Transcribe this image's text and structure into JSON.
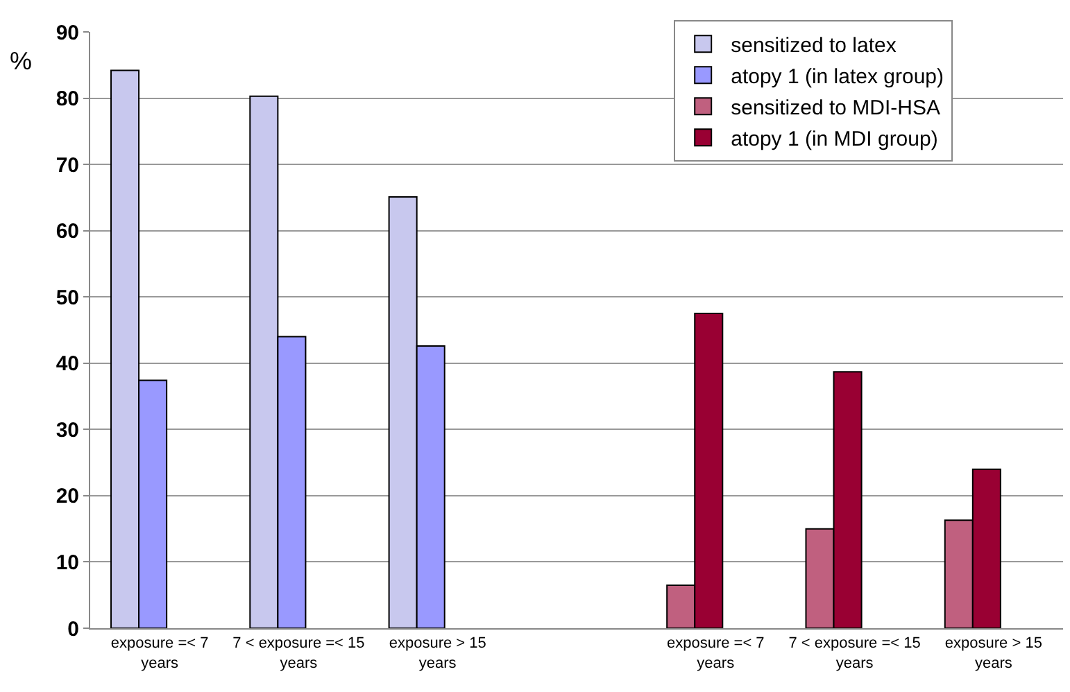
{
  "chart_data": {
    "type": "bar",
    "ylabel": "%",
    "categories": [
      "exposure =< 7 years",
      "7 < exposure =< 15 years",
      "exposure > 15 years",
      null,
      "exposure =< 7 years",
      "7 < exposure =< 15 years",
      "exposure > 15 years"
    ],
    "series": [
      {
        "name": "sensitized to latex",
        "color": "#c8c8ee",
        "values": [
          84.2,
          80.3,
          65.1,
          null,
          null,
          null,
          null
        ]
      },
      {
        "name": "atopy 1 (in latex group)",
        "color": "#9999ff",
        "values": [
          37.4,
          44,
          42.6,
          null,
          null,
          null,
          null
        ]
      },
      {
        "name": "sensitized to MDI-HSA",
        "color": "#c0607f",
        "values": [
          null,
          null,
          null,
          null,
          6.5,
          15,
          16.3
        ]
      },
      {
        "name": "atopy 1 (in MDI group)",
        "color": "#990033",
        "values": [
          null,
          null,
          null,
          null,
          47.5,
          38.7,
          24
        ]
      }
    ],
    "ylim": [
      0,
      90
    ],
    "yticks": [
      0,
      10,
      20,
      30,
      40,
      50,
      60,
      70,
      80,
      90
    ],
    "grid": "y",
    "legend": "top right"
  }
}
